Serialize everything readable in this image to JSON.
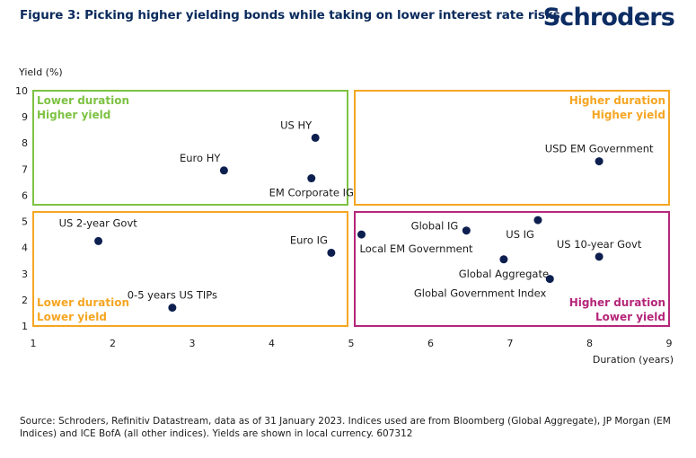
{
  "header": {
    "title": "Figure 3: Picking higher yielding bonds while taking on lower interest rate risks",
    "logo": "Schroders"
  },
  "colors": {
    "point": "#0d1f4f",
    "green": "#7dc242",
    "orange": "#f5a623",
    "magenta": "#b5267a",
    "axis": "#1b1b1b"
  },
  "chart_data": {
    "type": "scatter",
    "ylabel": "Yield (%)",
    "xlabel": "Duration (years)",
    "xlim": [
      1,
      9
    ],
    "ylim": [
      1,
      10
    ],
    "xticks": [
      1,
      2,
      3,
      4,
      5,
      6,
      7,
      8,
      9
    ],
    "yticks": [
      1,
      2,
      3,
      4,
      5,
      6,
      7,
      8,
      9,
      10
    ],
    "points": [
      {
        "label": "US HY",
        "x": 4.55,
        "y": 8.2,
        "label_pos": "above-left"
      },
      {
        "label": "Euro HY",
        "x": 3.4,
        "y": 6.95,
        "label_pos": "above-left"
      },
      {
        "label": "EM Corporate IG",
        "x": 4.5,
        "y": 6.65,
        "label_pos": "below"
      },
      {
        "label": "USD EM Government",
        "x": 8.12,
        "y": 7.3,
        "label_pos": "above"
      },
      {
        "label": "US 2-year Govt",
        "x": 1.82,
        "y": 4.25,
        "label_pos": "above-right"
      },
      {
        "label": "Euro IG",
        "x": 4.75,
        "y": 3.8,
        "label_pos": "above-left"
      },
      {
        "label": "0-5 years US TIPs",
        "x": 2.75,
        "y": 1.7,
        "label_pos": "above"
      },
      {
        "label": "Local EM Government",
        "x": 5.13,
        "y": 4.5,
        "label_pos": "below-right"
      },
      {
        "label": "Global IG",
        "x": 6.45,
        "y": 4.65,
        "label_pos": "left"
      },
      {
        "label": "US IG",
        "x": 7.35,
        "y": 5.05,
        "label_pos": "below-left"
      },
      {
        "label": "US 10-year Govt",
        "x": 8.12,
        "y": 3.65,
        "label_pos": "above"
      },
      {
        "label": "Global Aggregate",
        "x": 6.92,
        "y": 3.55,
        "label_pos": "below"
      },
      {
        "label": "Global Government Index",
        "x": 7.5,
        "y": 2.8,
        "label_pos": "below-left"
      }
    ],
    "quadrants": [
      {
        "line1": "Lower duration",
        "line2": "Higher yield",
        "color": "green",
        "x": [
          1,
          5
        ],
        "y": [
          5.5,
          10
        ],
        "text_pos": "top-left"
      },
      {
        "line1": "Higher duration",
        "line2": "Higher yield",
        "color": "orange",
        "x": [
          5,
          9
        ],
        "y": [
          5.5,
          10
        ],
        "text_pos": "top-right"
      },
      {
        "line1": "Lower duration",
        "line2": "Lower yield",
        "color": "orange",
        "x": [
          1,
          5
        ],
        "y": [
          1,
          5.5
        ],
        "text_pos": "bottom-left"
      },
      {
        "line1": "Higher duration",
        "line2": "Lower yield",
        "color": "magenta",
        "x": [
          5,
          9
        ],
        "y": [
          1,
          5.5
        ],
        "text_pos": "bottom-right"
      }
    ]
  },
  "footer": {
    "source": "Source: Schroders, Refinitiv Datastream, data as of 31 January 2023. Indices used are from Bloomberg (Global Aggregate), JP Morgan (EM Indices) and ICE BofA (all other indices). Yields are shown in local currency. 607312"
  }
}
